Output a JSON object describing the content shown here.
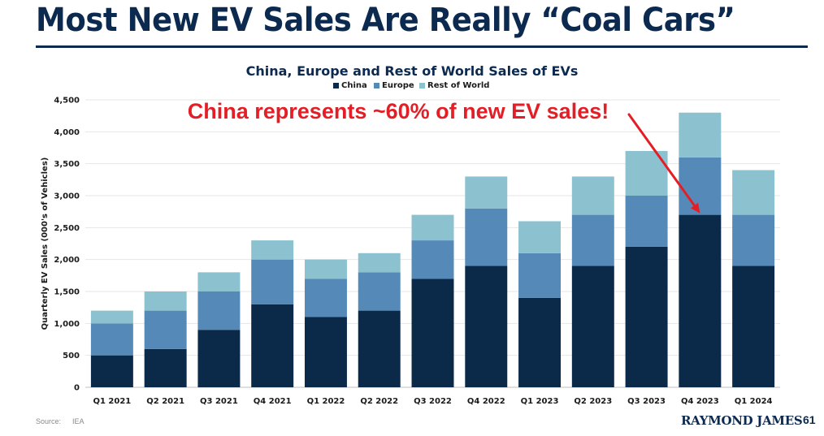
{
  "slide": {
    "headline": "Most New EV Sales Are Really “Coal Cars”",
    "source_label": "Source:",
    "source_value": "IEA",
    "brand": "RAYMOND JAMES",
    "page_number": "61"
  },
  "chart_data": {
    "type": "bar",
    "stacked": true,
    "title": "China, Europe and Rest of World Sales of EVs",
    "ylabel": "Quarterly EV Sales (000's of Vehicles)",
    "xlabel": "",
    "ylim": [
      0,
      4500
    ],
    "yticks": [
      0,
      500,
      1000,
      1500,
      2000,
      2500,
      3000,
      3500,
      4000,
      4500
    ],
    "ytick_labels": [
      "0",
      "500",
      "1,000",
      "1,500",
      "2,000",
      "2,500",
      "3,000",
      "3,500",
      "4,000",
      "4,500"
    ],
    "grid": true,
    "legend_position": "top",
    "categories": [
      "Q1 2021",
      "Q2 2021",
      "Q3 2021",
      "Q4 2021",
      "Q1 2022",
      "Q2 2022",
      "Q3 2022",
      "Q4 2022",
      "Q1 2023",
      "Q2 2023",
      "Q3 2023",
      "Q4 2023",
      "Q1 2024"
    ],
    "series": [
      {
        "name": "China",
        "color": "#0b2a4a",
        "values": [
          500,
          600,
          900,
          1300,
          1100,
          1200,
          1700,
          1900,
          1400,
          1900,
          2200,
          2700,
          1900
        ]
      },
      {
        "name": "Europe",
        "color": "#5589b8",
        "values": [
          500,
          600,
          600,
          700,
          600,
          600,
          600,
          900,
          700,
          800,
          800,
          900,
          800
        ]
      },
      {
        "name": "Rest of World",
        "color": "#8cc1cf",
        "values": [
          200,
          300,
          300,
          300,
          300,
          300,
          400,
          500,
          500,
          600,
          700,
          700,
          700
        ]
      }
    ],
    "annotation": {
      "text": "China represents ~60% of new EV sales!",
      "color": "#e41e26",
      "points_to_category": "Q4 2023"
    }
  }
}
